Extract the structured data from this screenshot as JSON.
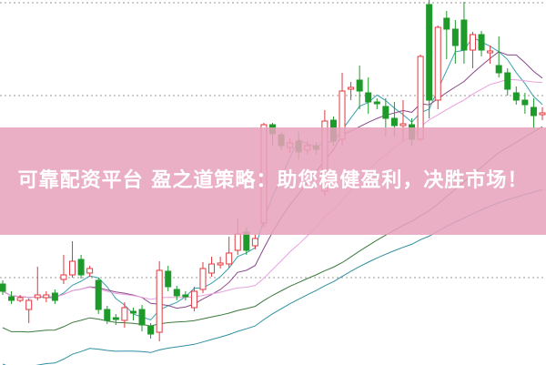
{
  "banner": {
    "title": "可靠配资平台 盈之道策略：助您稳健盈利，决胜市场！"
  },
  "chart_data": {
    "type": "candlestick",
    "ylim": [
      0,
      400
    ],
    "grid": "dotted horizontal",
    "colors": {
      "up": "#e0383e",
      "down": "#1e9a2a",
      "ma_lines": [
        "#3aa0b0",
        "#8a4a8a",
        "#e8a0e0",
        "#3c7a3c",
        "#2f8fa0"
      ]
    },
    "candles_ohlc": [
      [
        88,
        92,
        76,
        80
      ],
      [
        74,
        80,
        66,
        70
      ],
      [
        70,
        76,
        68,
        73
      ],
      [
        60,
        72,
        45,
        70
      ],
      [
        73,
        107,
        70,
        76
      ],
      [
        73,
        80,
        68,
        76
      ],
      [
        78,
        82,
        66,
        70
      ],
      [
        93,
        120,
        88,
        98
      ],
      [
        98,
        135,
        95,
        113
      ],
      [
        115,
        120,
        94,
        98
      ],
      [
        100,
        108,
        96,
        105
      ],
      [
        92,
        95,
        55,
        60
      ],
      [
        60,
        64,
        44,
        48
      ],
      [
        51,
        55,
        43,
        49
      ],
      [
        48,
        68,
        40,
        62
      ],
      [
        58,
        62,
        48,
        56
      ],
      [
        60,
        65,
        36,
        43
      ],
      [
        42,
        45,
        28,
        33
      ],
      [
        35,
        113,
        25,
        103
      ],
      [
        102,
        108,
        80,
        85
      ],
      [
        82,
        86,
        70,
        75
      ],
      [
        76,
        80,
        70,
        74
      ],
      [
        62,
        85,
        58,
        80
      ],
      [
        82,
        112,
        78,
        105
      ],
      [
        100,
        118,
        96,
        110
      ],
      [
        109,
        118,
        105,
        111
      ],
      [
        110,
        140,
        106,
        122
      ],
      [
        125,
        160,
        120,
        143
      ],
      [
        145,
        150,
        120,
        125
      ],
      [
        130,
        142,
        126,
        138
      ],
      [
        155,
        265,
        150,
        263
      ],
      [
        263,
        265,
        240,
        253
      ],
      [
        252,
        255,
        235,
        240
      ],
      [
        238,
        248,
        232,
        243
      ],
      [
        245,
        255,
        225,
        233
      ],
      [
        235,
        245,
        230,
        240
      ],
      [
        240,
        244,
        230,
        236
      ],
      [
        190,
        279,
        185,
        267
      ],
      [
        268,
        272,
        240,
        245
      ],
      [
        247,
        320,
        240,
        300
      ],
      [
        302,
        310,
        290,
        304
      ],
      [
        312,
        328,
        280,
        300
      ],
      [
        298,
        315,
        275,
        288
      ],
      [
        288,
        292,
        280,
        286
      ],
      [
        283,
        292,
        250,
        270
      ],
      [
        270,
        288,
        250,
        262
      ],
      [
        262,
        290,
        245,
        264
      ],
      [
        263,
        270,
        240,
        247
      ],
      [
        247,
        340,
        245,
        338
      ],
      [
        395,
        400,
        270,
        290
      ],
      [
        290,
        372,
        280,
        370
      ],
      [
        380,
        388,
        335,
        368
      ],
      [
        368,
        378,
        330,
        350
      ],
      [
        378,
        398,
        330,
        345
      ],
      [
        345,
        365,
        325,
        362
      ],
      [
        362,
        366,
        338,
        345
      ],
      [
        342,
        350,
        330,
        344
      ],
      [
        328,
        360,
        315,
        320
      ],
      [
        320,
        325,
        295,
        302
      ],
      [
        298,
        305,
        285,
        290
      ],
      [
        290,
        298,
        275,
        285
      ],
      [
        282,
        292,
        258,
        273
      ],
      [
        274,
        282,
        268,
        276
      ]
    ]
  }
}
